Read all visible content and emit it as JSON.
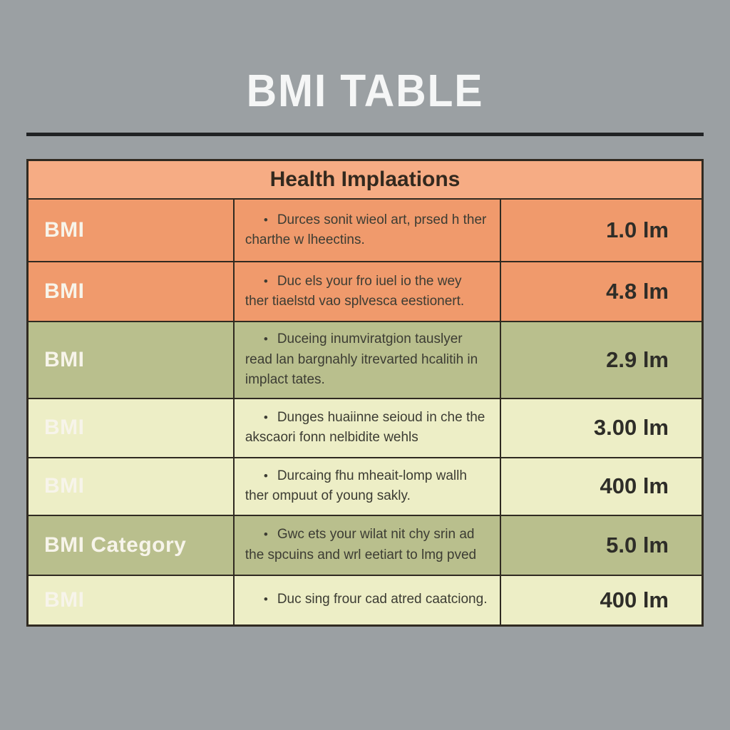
{
  "title": "BMI TABLE",
  "ui": {
    "bullet": "•"
  },
  "table": {
    "header": "Health Implaations",
    "rows": [
      {
        "label": "BMI",
        "description": "Durces sonit wieol art, prsed h ther charthe w lheectins.",
        "value": "1.0 lm",
        "theme": "orange"
      },
      {
        "label": "BMI",
        "description": "Duc els your fro iuel io the wey ther tiaelstd vao splvesca eestionert.",
        "value": "4.8 lm",
        "theme": "orange"
      },
      {
        "label": "BMI",
        "description": "Duceing inumviratgion tauslyer read lan bargnahly itrevarted hcalitih in implact tates.",
        "value": "2.9 lm",
        "theme": "olive"
      },
      {
        "label": "BMI",
        "description": "Dunges huaiinne seioud in che the akscaori fonn nelbidite wehls",
        "value": "3.00 lm",
        "theme": "pale"
      },
      {
        "label": "BMI",
        "description": "Durcaing fhu mheait-lomp wallh ther ompuut of young sakly.",
        "value": "400 lm",
        "theme": "pale"
      },
      {
        "label": "BMI Category",
        "description": "Gwc ets your wilat nit chy srin ad the spcuins and wrl eetiart to lmg pved",
        "value": "5.0 lm",
        "theme": "olive"
      },
      {
        "label": "BMI",
        "description": "Duc sing frour cad atred caatciong.",
        "value": "400 lm",
        "theme": "pale"
      }
    ]
  },
  "colors": {
    "background": "#9ba0a3",
    "title_text": "#f5f6f6",
    "rule": "#202224",
    "table_border": "#302a21",
    "header_bg": "#f6ac84",
    "header_text": "#33291e",
    "row_orange": "#f09a6c",
    "row_olive": "#b9bf8d",
    "row_pale": "#edeec6",
    "label_text": "#f7f4ea",
    "desc_text": "#3c3c33",
    "value_text": "#2e2d28"
  }
}
